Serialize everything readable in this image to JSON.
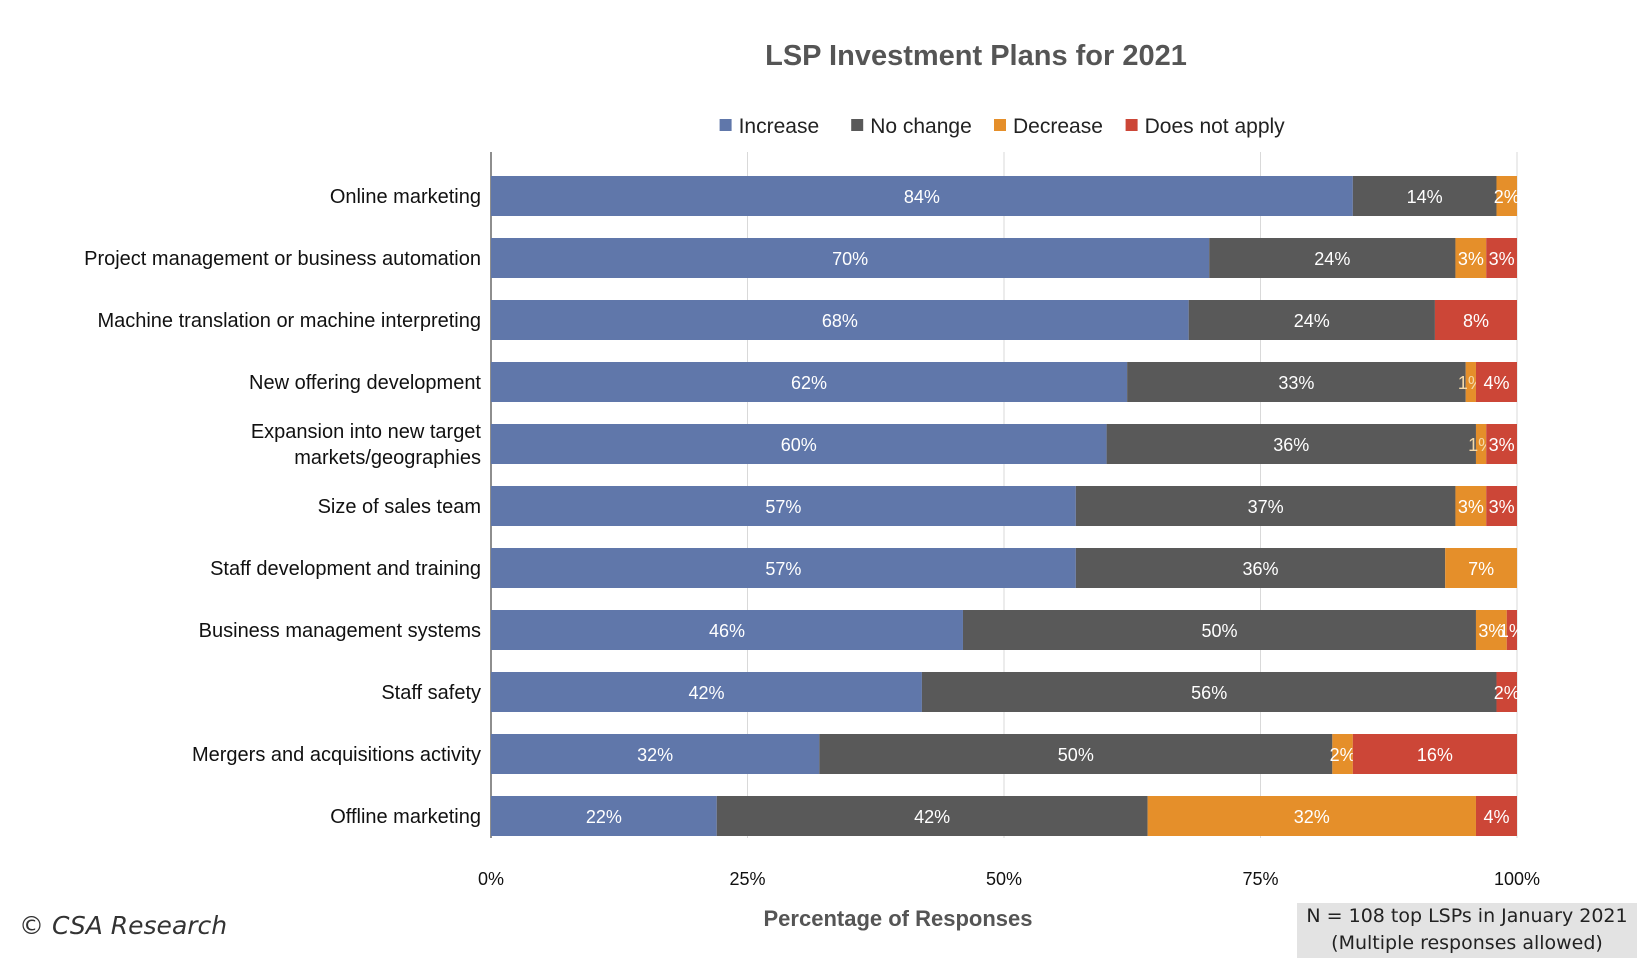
{
  "chart_data": {
    "type": "bar",
    "orientation": "horizontal",
    "stacked": true,
    "title": "LSP Investment Plans for 2021",
    "xlabel": "Percentage of Responses",
    "ylabel": "",
    "xlim": [
      0,
      100
    ],
    "xticks": [
      "0%",
      "25%",
      "50%",
      "75%",
      "100%"
    ],
    "legend_position": "top",
    "grid": true,
    "categories": [
      [
        "Online marketing"
      ],
      [
        "Project management or business automation"
      ],
      [
        "Machine translation or machine interpreting"
      ],
      [
        "New offering development"
      ],
      [
        "Expansion into new target",
        "markets/geographies"
      ],
      [
        "Size of sales team"
      ],
      [
        "Staff development and training"
      ],
      [
        "Business management systems"
      ],
      [
        "Staff safety"
      ],
      [
        "Mergers and acquisitions activity"
      ],
      [
        "Offline marketing"
      ]
    ],
    "series": [
      {
        "name": "Increase",
        "color": "#6077aa",
        "values": [
          84,
          70,
          68,
          62,
          60,
          57,
          57,
          46,
          42,
          32,
          22
        ]
      },
      {
        "name": "No change",
        "color": "#595959",
        "values": [
          14,
          24,
          24,
          33,
          36,
          37,
          36,
          50,
          56,
          50,
          42
        ]
      },
      {
        "name": "Decrease",
        "color": "#e58f2a",
        "values": [
          2,
          3,
          0,
          1,
          1,
          3,
          7,
          3,
          0,
          2,
          32
        ]
      },
      {
        "name": "Does not apply",
        "color": "#cc4637",
        "values": [
          0,
          3,
          8,
          4,
          3,
          3,
          0,
          1,
          2,
          16,
          4
        ]
      }
    ]
  },
  "footer": {
    "credit": "© CSA Research",
    "note_line1": "N = 108 top LSPs in January 2021",
    "note_line2": "(Multiple responses allowed)"
  }
}
